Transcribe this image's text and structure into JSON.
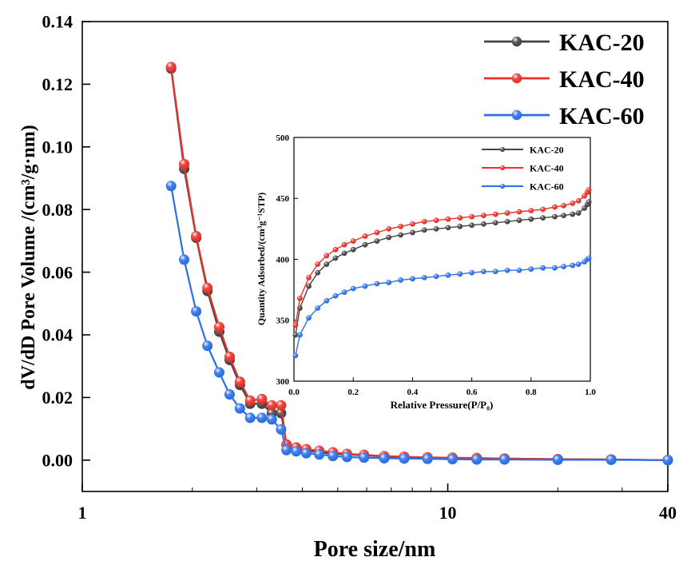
{
  "colors": {
    "KAC-20": "#444444",
    "KAC-40": "#e8312a",
    "KAC-60": "#2b6fe6",
    "axis": "#000000",
    "marker_highlight": "#ffffff"
  },
  "chart_data": [
    {
      "type": "line",
      "role": "main",
      "title": "",
      "xlabel": "Pore size/nm",
      "ylabel": "dV/dD Pore Volume /(cm³/g·nm)",
      "xscale": "log",
      "xlim": [
        1,
        40
      ],
      "ylim": [
        -0.01,
        0.14
      ],
      "x_ticks": [
        1,
        10,
        40
      ],
      "x_tick_labels": [
        "1",
        "10",
        "40"
      ],
      "y_ticks": [
        0,
        0.02,
        0.04,
        0.06,
        0.08,
        0.1,
        0.12,
        0.14
      ],
      "y_tick_labels": [
        "0.00",
        "0.02",
        "0.04",
        "0.06",
        "0.08",
        "0.10",
        "0.12",
        "0.14"
      ],
      "legend_position": "top-right",
      "grid": false,
      "series": [
        {
          "name": "KAC-20",
          "color": "#444444",
          "x": [
            1.75,
            1.9,
            2.05,
            2.2,
            2.37,
            2.53,
            2.7,
            2.88,
            3.1,
            3.3,
            3.5,
            3.62,
            3.85,
            4.1,
            4.45,
            4.85,
            5.3,
            5.9,
            6.7,
            7.6,
            8.8,
            10.3,
            12.0,
            14.3,
            20.0,
            28.0,
            40.0
          ],
          "values": [
            0.125,
            0.093,
            0.071,
            0.054,
            0.041,
            0.032,
            0.024,
            0.018,
            0.018,
            0.015,
            0.015,
            0.005,
            0.004,
            0.003,
            0.0025,
            0.002,
            0.0018,
            0.0015,
            0.0012,
            0.001,
            0.0008,
            0.0007,
            0.0006,
            0.0005,
            0.0003,
            0.0002,
            0.0
          ]
        },
        {
          "name": "KAC-40",
          "color": "#e8312a",
          "x": [
            1.75,
            1.9,
            2.05,
            2.2,
            2.37,
            2.53,
            2.7,
            2.88,
            3.1,
            3.3,
            3.5,
            3.62,
            3.85,
            4.1,
            4.45,
            4.85,
            5.3,
            5.9,
            6.7,
            7.6,
            8.8,
            10.3,
            12.0,
            14.3,
            20.0,
            28.0,
            40.0
          ],
          "values": [
            0.1255,
            0.0945,
            0.0715,
            0.055,
            0.0425,
            0.033,
            0.025,
            0.019,
            0.0195,
            0.0175,
            0.0175,
            0.005,
            0.004,
            0.0035,
            0.003,
            0.0025,
            0.002,
            0.0017,
            0.0013,
            0.0011,
            0.0009,
            0.0008,
            0.0007,
            0.0005,
            0.0003,
            0.0002,
            0.0
          ]
        },
        {
          "name": "KAC-60",
          "color": "#2b6fe6",
          "x": [
            1.75,
            1.9,
            2.05,
            2.2,
            2.37,
            2.53,
            2.7,
            2.88,
            3.1,
            3.3,
            3.5,
            3.62,
            3.85,
            4.1,
            4.45,
            4.85,
            5.3,
            5.9,
            6.7,
            7.6,
            8.8,
            10.3,
            12.0,
            14.3,
            20.0,
            28.0,
            40.0
          ],
          "values": [
            0.0875,
            0.064,
            0.0475,
            0.0365,
            0.028,
            0.021,
            0.0165,
            0.0135,
            0.0135,
            0.013,
            0.0098,
            0.0032,
            0.0028,
            0.0022,
            0.0018,
            0.0013,
            0.001,
            0.0008,
            0.0006,
            0.0005,
            0.0004,
            0.0003,
            0.0002,
            0.0002,
            0.0001,
            0.0001,
            0.0
          ]
        }
      ]
    },
    {
      "type": "line",
      "role": "inset",
      "title": "",
      "xlabel": "Relative Pressure(P/P₀)",
      "ylabel": "Quantity Adsorbed/(cm³g⁻¹STP)",
      "xlim": [
        0,
        1.0
      ],
      "ylim": [
        300,
        500
      ],
      "x_ticks": [
        0,
        0.2,
        0.4,
        0.6,
        0.8,
        1.0
      ],
      "x_tick_labels": [
        "0.0",
        "0.2",
        "0.4",
        "0.6",
        "0.8",
        "1.0"
      ],
      "y_ticks": [
        300,
        350,
        400,
        450,
        500
      ],
      "y_tick_labels": [
        "300",
        "350",
        "400",
        "450",
        "500"
      ],
      "legend_position": "top-right",
      "grid": false,
      "series": [
        {
          "name": "KAC-20",
          "color": "#444444",
          "x": [
            0.005,
            0.02,
            0.05,
            0.08,
            0.11,
            0.14,
            0.17,
            0.2,
            0.24,
            0.28,
            0.32,
            0.36,
            0.4,
            0.44,
            0.48,
            0.52,
            0.56,
            0.6,
            0.64,
            0.68,
            0.72,
            0.76,
            0.8,
            0.84,
            0.88,
            0.91,
            0.94,
            0.96,
            0.98,
            0.99,
            0.995
          ],
          "values": [
            338,
            360,
            378,
            389,
            396,
            401,
            405,
            408,
            412,
            415,
            418,
            420,
            422,
            424,
            425,
            426,
            427,
            428,
            429,
            430,
            431,
            432,
            433,
            434,
            435,
            436,
            437,
            438,
            442,
            445,
            447
          ]
        },
        {
          "name": "KAC-40",
          "color": "#e8312a",
          "x": [
            0.005,
            0.02,
            0.05,
            0.08,
            0.11,
            0.14,
            0.17,
            0.2,
            0.24,
            0.28,
            0.32,
            0.36,
            0.4,
            0.44,
            0.48,
            0.52,
            0.56,
            0.6,
            0.64,
            0.68,
            0.72,
            0.76,
            0.8,
            0.84,
            0.88,
            0.91,
            0.94,
            0.96,
            0.98,
            0.99,
            0.995
          ],
          "values": [
            346,
            368,
            385,
            396,
            403,
            408,
            412,
            415,
            419,
            422,
            425,
            427,
            429,
            431,
            432,
            433,
            434,
            435,
            436,
            437,
            438,
            439,
            440,
            441,
            443,
            444,
            446,
            448,
            452,
            455,
            457
          ]
        },
        {
          "name": "KAC-60",
          "color": "#2b6fe6",
          "x": [
            0.005,
            0.02,
            0.05,
            0.08,
            0.11,
            0.14,
            0.17,
            0.2,
            0.24,
            0.28,
            0.32,
            0.36,
            0.4,
            0.44,
            0.48,
            0.52,
            0.56,
            0.6,
            0.64,
            0.68,
            0.72,
            0.76,
            0.8,
            0.84,
            0.88,
            0.91,
            0.94,
            0.96,
            0.98,
            0.99,
            0.995
          ],
          "values": [
            321,
            338,
            352,
            360,
            366,
            370,
            373,
            376,
            378,
            380,
            381,
            383,
            384,
            385,
            386,
            387,
            388,
            389,
            390,
            390,
            391,
            391,
            392,
            393,
            393,
            394,
            395,
            396,
            398,
            400,
            401
          ]
        }
      ]
    }
  ]
}
